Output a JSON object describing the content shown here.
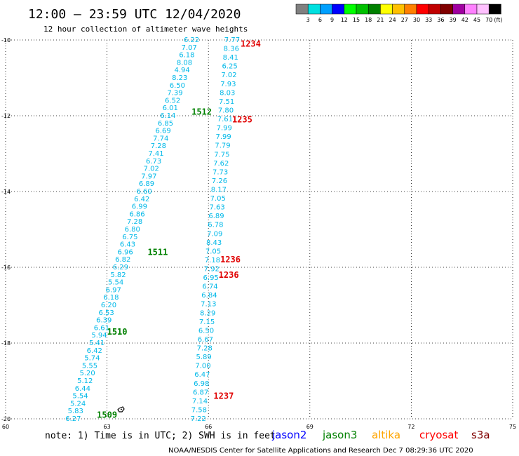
{
  "chart_data": {
    "type": "scatter",
    "title": "12:00 – 23:59 UTC 12/04/2020",
    "subtitle": "12 hour collection of altimeter wave heights",
    "xlim": [
      60,
      75
    ],
    "ylim": [
      -20,
      -10
    ],
    "x_ticks": [
      {
        "value": 60,
        "label": "60"
      },
      {
        "value": 63,
        "label": "63"
      },
      {
        "value": 66,
        "label": "66"
      },
      {
        "value": 69,
        "label": "69"
      },
      {
        "value": 72,
        "label": "72"
      },
      {
        "value": 75,
        "label": "75"
      }
    ],
    "y_ticks": [
      {
        "value": -10,
        "label": "-10"
      },
      {
        "value": -12,
        "label": "-12"
      },
      {
        "value": -14,
        "label": "-14"
      },
      {
        "value": -16,
        "label": "-16"
      },
      {
        "value": -18,
        "label": "-18"
      },
      {
        "value": -20,
        "label": "-20"
      }
    ],
    "grid": true,
    "color_scale": {
      "unit": "(ft)",
      "colors": [
        "#808080",
        "#00e0e0",
        "#00a0ff",
        "#0000ff",
        "#00ff00",
        "#00c000",
        "#008000",
        "#ffff00",
        "#ffc000",
        "#ff8000",
        "#ff0000",
        "#c00000",
        "#800000",
        "#a000a0",
        "#ff80ff",
        "#ffc0ff",
        "#000000"
      ],
      "labels": [
        "3",
        "6",
        "9",
        "12",
        "15",
        "18",
        "21",
        "24",
        "27",
        "30",
        "33",
        "36",
        "39",
        "42",
        "45",
        "70"
      ]
    },
    "value_color": "#00b8e8",
    "series": [
      {
        "name": "jason3",
        "color": "#008000",
        "start": [
          62.0,
          -20.0
        ],
        "end": [
          65.5,
          -10.0
        ],
        "values": [
          "6.27",
          "5.83",
          "5.24",
          "5.54",
          "6.44",
          "5.12",
          "5.20",
          "5.55",
          "5.74",
          "6.42",
          "5.41",
          "5.94",
          "6.61",
          "6.39",
          "6.53",
          "6.20",
          "6.18",
          "6.97",
          "5.54",
          "5.82",
          "6.29",
          "6.82",
          "6.96",
          "6.43",
          "6.75",
          "6.80",
          "7.28",
          "6.86",
          "6.99",
          "6.42",
          "6.60",
          "6.89",
          "7.97",
          "7.02",
          "6.73",
          "7.41",
          "7.28",
          "7.74",
          "6.69",
          "6.85",
          "6.14",
          "6.01",
          "6.52",
          "7.39",
          "6.50",
          "8.23",
          "4.94",
          "8.08",
          "6.18",
          "7.07",
          "6.22"
        ],
        "labels": [
          {
            "text": "1509",
            "at": [
              63.0,
              -19.9
            ]
          },
          {
            "text": "1510",
            "at": [
              63.3,
              -17.7
            ]
          },
          {
            "text": "1511",
            "at": [
              64.5,
              -15.6
            ]
          },
          {
            "text": "1512",
            "at": [
              65.8,
              -11.9
            ]
          }
        ]
      },
      {
        "name": "cryosat",
        "color": "#e00000",
        "start": [
          65.7,
          -20.0
        ],
        "end": [
          66.7,
          -10.0
        ],
        "values": [
          "7.22",
          "7.58",
          "7.14",
          "6.87",
          "6.98",
          "6.47",
          "7.00",
          "5.89",
          "7.28",
          "6.67",
          "6.50",
          "7.15",
          "8.29",
          "7.13",
          "6.84",
          "6.74",
          "6.95",
          "7.92",
          "7.18",
          "7.05",
          "8.43",
          "7.09",
          "6.78",
          "6.89",
          "7.63",
          "7.05",
          "8.17",
          "7.26",
          "7.73",
          "7.62",
          "7.75",
          "7.79",
          "7.99",
          "7.99",
          "7.61",
          "7.80",
          "7.51",
          "8.03",
          "7.93",
          "7.02",
          "6.25",
          "8.41",
          "8.36",
          "7.77"
        ],
        "labels": [
          {
            "text": "1237",
            "at": [
              66.45,
              -19.4
            ]
          },
          {
            "text": "1236",
            "at": [
              66.6,
              -16.2
            ]
          },
          {
            "text": "1236",
            "at": [
              66.65,
              -15.8
            ]
          },
          {
            "text": "1235",
            "at": [
              67.0,
              -12.1
            ]
          },
          {
            "text": "1234",
            "at": [
              67.25,
              -10.1
            ]
          }
        ]
      }
    ]
  },
  "note": "note: 1) Time is in UTC; 2) SWH is in feet",
  "legend": [
    {
      "label": "jason2",
      "color": "#0000ff"
    },
    {
      "label": "jason3",
      "color": "#008000"
    },
    {
      "label": "altika",
      "color": "#ffa500"
    },
    {
      "label": "cryosat",
      "color": "#ff0000"
    },
    {
      "label": "s3a",
      "color": "#800000"
    }
  ],
  "footer": "NOAA/NESDIS Center for Satellite Applications and Research    Dec  7 08:29:36 UTC 2020"
}
